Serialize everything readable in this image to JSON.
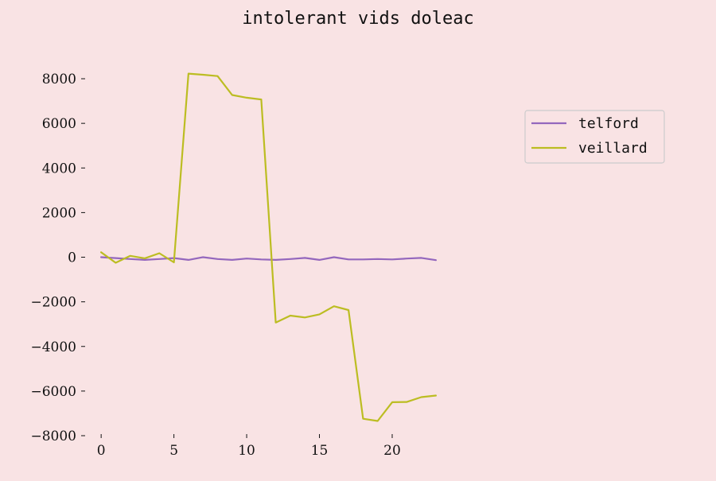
{
  "chart_data": {
    "type": "line",
    "title": "intolerant vids doleac",
    "xlabel": "",
    "ylabel": "",
    "xlim": [
      -0.5,
      23.5
    ],
    "ylim": [
      -8000,
      8500
    ],
    "xticks": [
      0,
      5,
      10,
      15,
      20
    ],
    "yticks": [
      -8000,
      -6000,
      -4000,
      -2000,
      0,
      2000,
      4000,
      6000,
      8000
    ],
    "xtick_labels": [
      "0",
      "5",
      "10",
      "15",
      "20"
    ],
    "ytick_labels": [
      "−8000",
      "−6000",
      "−4000",
      "−2000",
      "0",
      "2000",
      "4000",
      "6000",
      "8000"
    ],
    "grid": false,
    "legend_position": "upper-right",
    "x": [
      0,
      1,
      2,
      3,
      4,
      5,
      6,
      7,
      8,
      9,
      10,
      11,
      12,
      13,
      14,
      15,
      16,
      17,
      18,
      19,
      20,
      21,
      22,
      23
    ],
    "series": [
      {
        "name": "telford",
        "color": "#9467bd",
        "values": [
          0,
          -40,
          -80,
          -120,
          -80,
          -40,
          -120,
          0,
          -80,
          -120,
          -60,
          -100,
          -120,
          -80,
          -30,
          -120,
          0,
          -100,
          -100,
          -80,
          -100,
          -60,
          -30,
          -130
        ]
      },
      {
        "name": "veillard",
        "color": "#bcbd22",
        "values": [
          220,
          -250,
          60,
          -50,
          180,
          -230,
          8230,
          8180,
          8120,
          7270,
          7150,
          7070,
          -2930,
          -2620,
          -2700,
          -2560,
          -2200,
          -2370,
          -7240,
          -7340,
          -6500,
          -6490,
          -6270,
          -6200
        ]
      }
    ]
  }
}
